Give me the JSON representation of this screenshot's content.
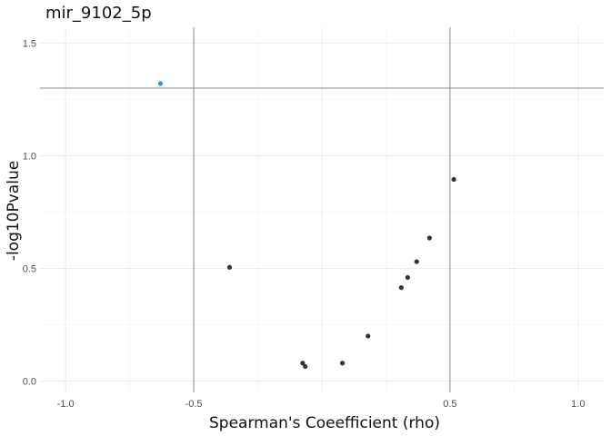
{
  "chart_data": {
    "type": "scatter",
    "title": "mir_9102_5p",
    "xlabel": "Spearman's Coeefficient (rho)",
    "ylabel": "-log10Pvalue",
    "xlim": [
      -1.1,
      1.1
    ],
    "ylim": [
      -0.05,
      1.57
    ],
    "x_ticks": [
      -1.0,
      -0.5,
      0.0,
      0.5,
      1.0
    ],
    "x_tick_labels": [
      "-1.0",
      "-0.5",
      "",
      "0.5",
      "1.0"
    ],
    "y_ticks": [
      0.0,
      0.5,
      1.0,
      1.5
    ],
    "y_tick_labels": [
      "0.0",
      "0.5",
      "1.0",
      "1.5"
    ],
    "grid": true,
    "reference_lines": {
      "vertical": [
        -0.5,
        0.5
      ],
      "horizontal": [
        1.3
      ]
    },
    "colors": {
      "significant": "#1a9bdb",
      "default": "#333333",
      "reference_line": "#8c8c8c"
    },
    "points": [
      {
        "x": -0.63,
        "y": 1.32,
        "significant": true
      },
      {
        "x": 0.515,
        "y": 0.895,
        "significant": false
      },
      {
        "x": 0.42,
        "y": 0.635,
        "significant": false
      },
      {
        "x": -0.36,
        "y": 0.505,
        "significant": false
      },
      {
        "x": 0.37,
        "y": 0.53,
        "significant": false
      },
      {
        "x": 0.335,
        "y": 0.46,
        "significant": false
      },
      {
        "x": 0.31,
        "y": 0.415,
        "significant": false
      },
      {
        "x": 0.18,
        "y": 0.2,
        "significant": false
      },
      {
        "x": 0.08,
        "y": 0.08,
        "significant": false
      },
      {
        "x": -0.075,
        "y": 0.08,
        "significant": false
      },
      {
        "x": -0.065,
        "y": 0.065,
        "significant": false
      }
    ]
  }
}
